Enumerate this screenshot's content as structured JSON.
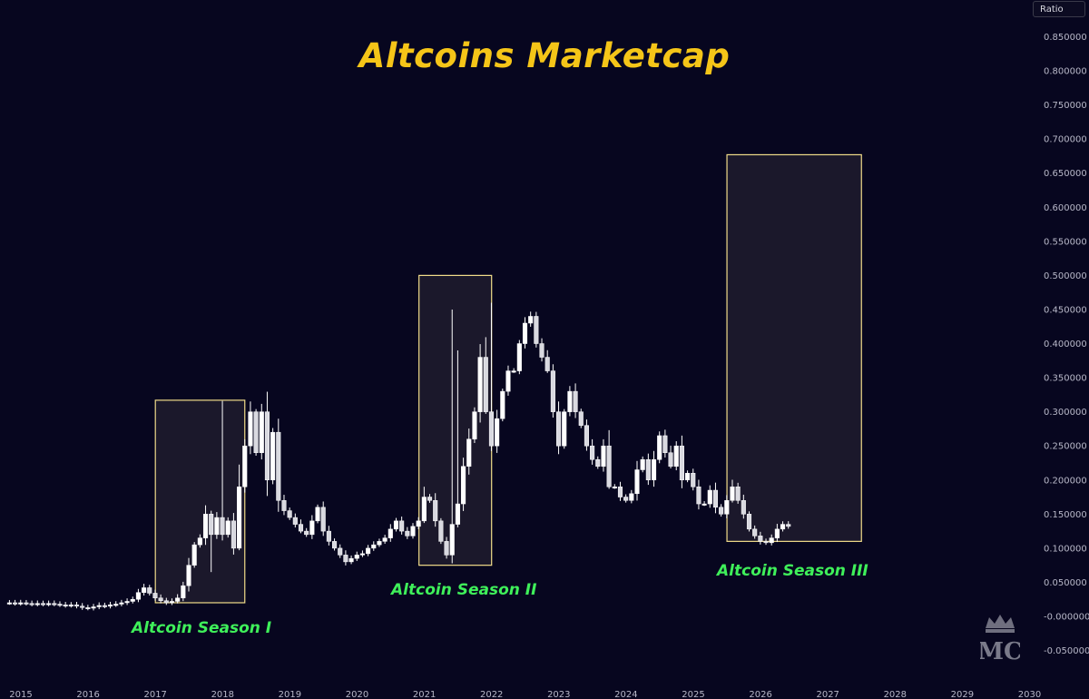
{
  "header": {
    "title": "Altcoins Marketcap"
  },
  "toolbar": {
    "scale_label": "Ratio"
  },
  "seasons": [
    {
      "label": "Altcoin Season I",
      "start": 2017.0,
      "end": 2018.33,
      "low": 0.02,
      "high": 0.317
    },
    {
      "label": "Altcoin Season II",
      "start": 2020.92,
      "end": 2022.0,
      "low": 0.075,
      "high": 0.5
    },
    {
      "label": "Altcoin Season III",
      "start": 2025.5,
      "end": 2027.5,
      "low": 0.11,
      "high": 0.677
    }
  ],
  "watermark": {
    "text": "MC"
  },
  "colors": {
    "background": "#07061f",
    "candle": "#ffffff",
    "box_border": "#f1dc8a",
    "box_fill": "#1e1c2e",
    "title": "#f5c518",
    "season_label": "#3ff05a",
    "axis_text": "#b8b8c8"
  },
  "chart_data": {
    "type": "candlestick",
    "title": "Altcoins Marketcap",
    "interval": "monthly",
    "x_ticks": [
      "2015",
      "2016",
      "2017",
      "2018",
      "2019",
      "2020",
      "2021",
      "2022",
      "2023",
      "2024",
      "2025",
      "2026",
      "2027",
      "2028",
      "2029",
      "2030"
    ],
    "y_ticks": [
      "0.850000",
      "0.800000",
      "0.750000",
      "0.700000",
      "0.650000",
      "0.600000",
      "0.550000",
      "0.500000",
      "0.450000",
      "0.400000",
      "0.350000",
      "0.300000",
      "0.250000",
      "0.200000",
      "0.150000",
      "0.100000",
      "0.050000",
      "-0.000000",
      "-0.050000"
    ],
    "ylim": [
      -0.07,
      0.88
    ],
    "xlim": [
      2014.8,
      2030.0
    ],
    "series": [
      {
        "name": "Altcoin Marketcap Ratio",
        "closes": [
          0.02,
          0.019,
          0.02,
          0.019,
          0.018,
          0.019,
          0.018,
          0.019,
          0.018,
          0.017,
          0.016,
          0.017,
          0.015,
          0.013,
          0.012,
          0.014,
          0.016,
          0.015,
          0.017,
          0.018,
          0.02,
          0.022,
          0.025,
          0.035,
          0.042,
          0.034,
          0.027,
          0.023,
          0.02,
          0.022,
          0.027,
          0.045,
          0.075,
          0.105,
          0.115,
          0.15,
          0.12,
          0.145,
          0.12,
          0.14,
          0.1,
          0.19,
          0.25,
          0.3,
          0.24,
          0.3,
          0.2,
          0.27,
          0.17,
          0.155,
          0.145,
          0.135,
          0.125,
          0.12,
          0.14,
          0.16,
          0.125,
          0.11,
          0.1,
          0.09,
          0.08,
          0.085,
          0.09,
          0.092,
          0.1,
          0.105,
          0.11,
          0.115,
          0.128,
          0.14,
          0.125,
          0.118,
          0.132,
          0.14,
          0.175,
          0.17,
          0.14,
          0.11,
          0.09,
          0.135,
          0.165,
          0.22,
          0.26,
          0.3,
          0.38,
          0.3,
          0.25,
          0.29,
          0.33,
          0.36,
          0.36,
          0.4,
          0.43,
          0.44,
          0.4,
          0.38,
          0.36,
          0.3,
          0.25,
          0.3,
          0.33,
          0.3,
          0.28,
          0.25,
          0.23,
          0.22,
          0.25,
          0.19,
          0.19,
          0.175,
          0.17,
          0.18,
          0.215,
          0.23,
          0.2,
          0.23,
          0.265,
          0.24,
          0.22,
          0.25,
          0.2,
          0.21,
          0.19,
          0.165,
          0.165,
          0.185,
          0.16,
          0.15,
          0.17,
          0.19,
          0.17,
          0.15,
          0.128,
          0.118,
          0.11,
          0.108,
          0.115,
          0.128,
          0.135,
          0.132
        ]
      }
    ]
  }
}
